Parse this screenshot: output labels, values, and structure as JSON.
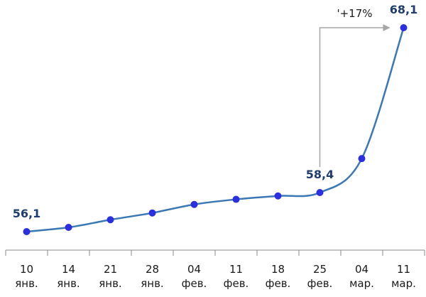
{
  "chart_data": {
    "type": "line",
    "categories": [
      "10 янв.",
      "14 янв.",
      "21 янв.",
      "28 янв.",
      "04 фев.",
      "11 фев.",
      "18 фев.",
      "25 фев.",
      "04 мар.",
      "11 мар."
    ],
    "series": [
      {
        "color": "#3a78b5",
        "marker_color": "#2b2fe0",
        "values": [
          56.1,
          56.35,
          56.8,
          57.2,
          57.7,
          58.0,
          58.2,
          58.4,
          60.4,
          68.1
        ],
        "value_labels": [
          "56,1",
          null,
          null,
          null,
          null,
          null,
          null,
          "58,4",
          null,
          "68,1"
        ]
      }
    ],
    "annotation": {
      "text": "'+17%",
      "from_index": 7,
      "to_index": 9
    }
  }
}
